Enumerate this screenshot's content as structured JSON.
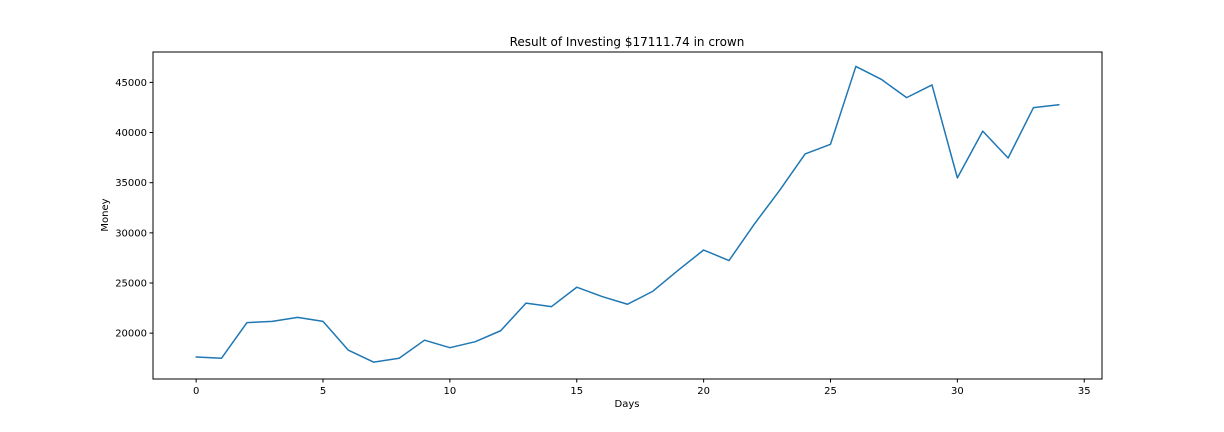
{
  "chart_data": {
    "type": "line",
    "title": "Result of Investing $17111.74 in crown",
    "xlabel": "Days",
    "ylabel": "Money",
    "xlim": [
      -1.7,
      35.7
    ],
    "ylim": [
      15430,
      48030
    ],
    "xticks": [
      0,
      5,
      10,
      15,
      20,
      25,
      30,
      35
    ],
    "yticks": [
      20000,
      25000,
      30000,
      35000,
      40000,
      45000
    ],
    "grid": false,
    "colors": {
      "line": "#1f77b4"
    },
    "series": [
      {
        "x": [
          0,
          1,
          2,
          3,
          4,
          5,
          6,
          7,
          8,
          9,
          10,
          11,
          12,
          13,
          14,
          15,
          16,
          17,
          18,
          19,
          20,
          21,
          22,
          23,
          24,
          25,
          26,
          27,
          28,
          29,
          30,
          31,
          32,
          33,
          34
        ],
        "values": [
          17620,
          17500,
          21050,
          21170,
          21570,
          21170,
          18300,
          17110,
          17500,
          19300,
          18550,
          19150,
          20240,
          23000,
          22640,
          24580,
          23650,
          22880,
          24180,
          26280,
          28290,
          27240,
          30880,
          34250,
          37870,
          38830,
          46590,
          45310,
          43480,
          44750,
          35480,
          40140,
          37460,
          42490,
          42770
        ]
      }
    ]
  }
}
